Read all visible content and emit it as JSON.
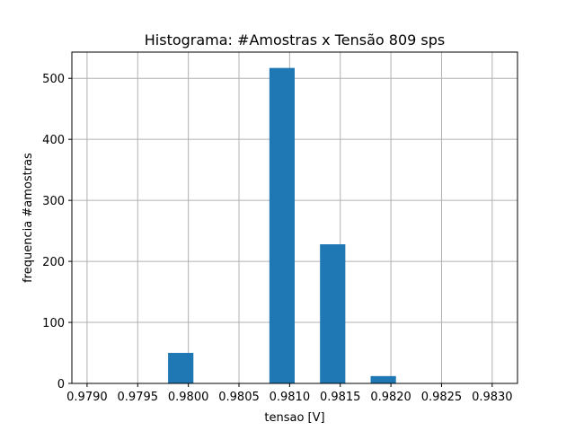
{
  "chart_data": {
    "type": "bar",
    "title": "Histograma: #Amostras x Tensão 809 sps",
    "xlabel": "tensao [V]",
    "ylabel": "frequencia #amostras",
    "xlim": [
      0.97885,
      0.98325
    ],
    "ylim": [
      0,
      543
    ],
    "x_ticks": [
      "0.9790",
      "0.9795",
      "0.9800",
      "0.9805",
      "0.9810",
      "0.9815",
      "0.9820",
      "0.9825",
      "0.9830"
    ],
    "x_tick_values": [
      0.979,
      0.9795,
      0.98,
      0.9805,
      0.981,
      0.9815,
      0.982,
      0.9825,
      0.983
    ],
    "y_ticks": [
      "0",
      "100",
      "200",
      "300",
      "400",
      "500"
    ],
    "y_tick_values": [
      0,
      100,
      200,
      300,
      400,
      500
    ],
    "bins": [
      {
        "x0": 0.979,
        "x1": 0.9795,
        "value": 0
      },
      {
        "x0": 0.9795,
        "x1": 0.98,
        "value": 0
      },
      {
        "x0": 0.98,
        "x1": 0.9805,
        "value": 50
      },
      {
        "x0": 0.9805,
        "x1": 0.981,
        "value": 0
      },
      {
        "x0": 0.981,
        "x1": 0.9815,
        "value": 0
      },
      {
        "x0": 0.9815,
        "x1": 0.982,
        "value": 0
      },
      {
        "x0": 0.982,
        "x1": 0.9825,
        "value": 0
      },
      {
        "x0": 0.9825,
        "x1": 0.983,
        "value": 0
      }
    ],
    "bars": [
      {
        "x0": 0.9798,
        "x1": 0.98005,
        "value": 50
      },
      {
        "x0": 0.9808,
        "x1": 0.98105,
        "value": 517
      },
      {
        "x0": 0.9813,
        "x1": 0.98155,
        "value": 228
      },
      {
        "x0": 0.9818,
        "x1": 0.98205,
        "value": 12
      }
    ],
    "bar_color": "#1f77b4",
    "grid": true,
    "legend": null
  }
}
